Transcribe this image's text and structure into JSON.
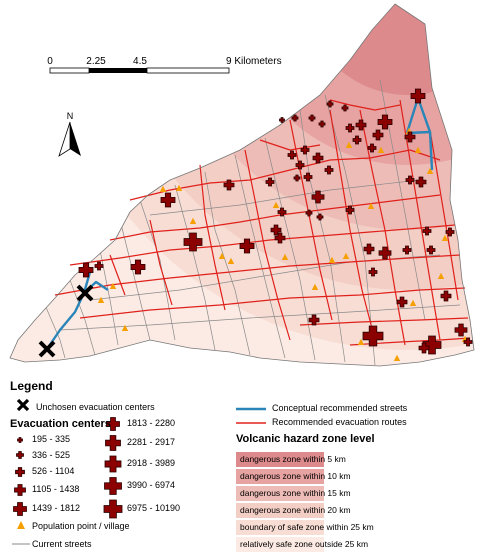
{
  "scale_bar": {
    "ticks": [
      "0",
      "2.25",
      "4.5",
      "9 Kilometers"
    ]
  },
  "north_arrow": {
    "label": "N"
  },
  "legend": {
    "title": "Legend",
    "unchosen": "Unchosen evacuation centers",
    "centers_title": "Evacuation centers",
    "center_classes": [
      "195 - 335",
      "336 - 525",
      "526 - 1104",
      "1105 - 1438",
      "1439 - 1812",
      "1813 - 2280",
      "2281 - 2917",
      "2918 - 3989",
      "3990 - 6974",
      "6975 - 10190"
    ],
    "population_point": "Population point / village",
    "current_streets": "Current streets",
    "conceptual_streets": "Conceptual recommended streets",
    "recommended_routes": "Recommended evacuation routes",
    "hazard_title": "Volcanic hazard zone level",
    "zones": [
      {
        "label": "dangerous zone within 5 km",
        "color": "#dd8a8c"
      },
      {
        "label": "dangerous zone within 10 km",
        "color": "#e6a3a1"
      },
      {
        "label": "dangerous zone within 15 km",
        "color": "#eebcb6"
      },
      {
        "label": "dangerous zone within 20 km",
        "color": "#f3cec5"
      },
      {
        "label": "boundary of safe zone within 25 km",
        "color": "#f8ddd4"
      },
      {
        "label": "relatively safe zone outside 25 km",
        "color": "#fcebe4"
      }
    ]
  },
  "colors": {
    "center_fill": "#8b0000",
    "route_red": "#e0201b",
    "conceptual_blue": "#2a86b8",
    "village_orange": "#f5a000",
    "street_gray": "#888888"
  }
}
